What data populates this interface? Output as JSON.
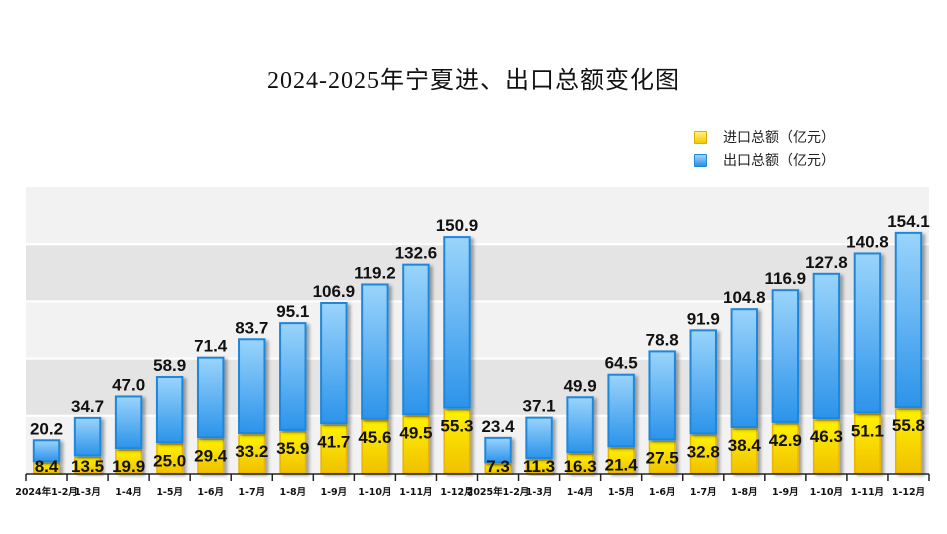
{
  "chart_data": {
    "type": "bar",
    "stacked": true,
    "title": "2024-2025年宁夏进、出口总额变化图",
    "xlabel": "",
    "ylabel": "",
    "ylim": [
      0,
      250
    ],
    "grid": true,
    "legend_position": "top-right",
    "categories": [
      "2024年1-2月",
      "1-3月",
      "1-4月",
      "1-5月",
      "1-6月",
      "1-7月",
      "1-8月",
      "1-9月",
      "1-10月",
      "1-11月",
      "1-12月",
      "2025年1-2月",
      "1-3月",
      "1-4月",
      "1-5月",
      "1-6月",
      "1-7月",
      "1-8月",
      "1-9月",
      "1-10月",
      "1-11月",
      "1-12月"
    ],
    "series": [
      {
        "name": "进口总额（亿元）",
        "color": "#f5d800",
        "values": [
          8.4,
          13.5,
          19.9,
          25.0,
          29.4,
          33.2,
          35.9,
          41.7,
          45.6,
          49.5,
          55.3,
          7.3,
          11.3,
          16.3,
          21.4,
          27.5,
          32.8,
          38.4,
          42.9,
          46.3,
          51.1,
          55.8
        ]
      },
      {
        "name": "出口总额（亿元）",
        "color": "#3aa2ee",
        "values": [
          20.2,
          34.7,
          47.0,
          58.9,
          71.4,
          83.7,
          95.1,
          106.9,
          119.2,
          132.6,
          150.9,
          23.4,
          37.1,
          49.9,
          64.5,
          78.8,
          91.9,
          104.8,
          116.9,
          127.8,
          140.8,
          154.1
        ]
      }
    ]
  }
}
